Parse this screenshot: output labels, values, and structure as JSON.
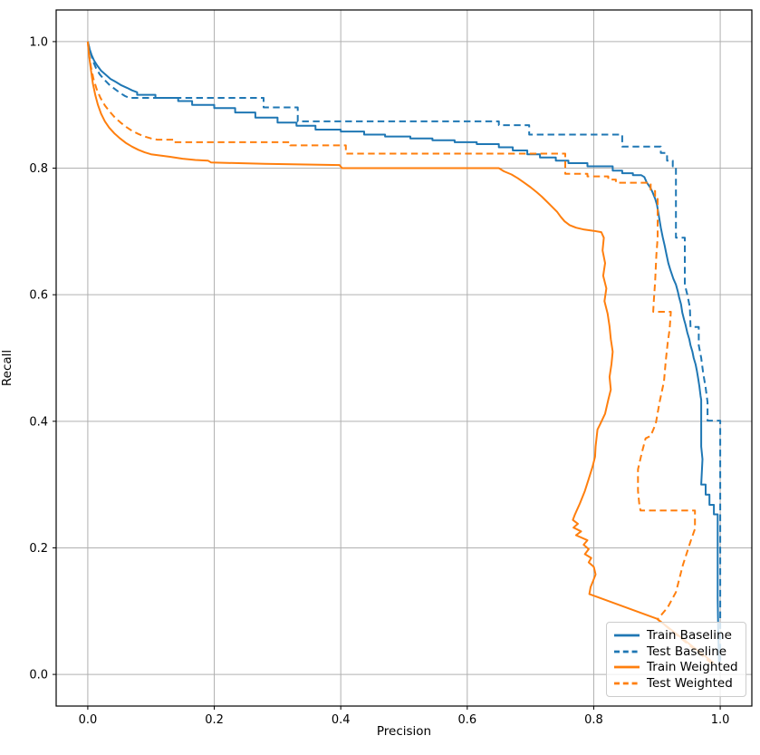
{
  "figure": {
    "background": "#ffffff",
    "axes_edge_color": "#000000",
    "grid_color": "#b0b0b0",
    "tick_color": "#000000"
  },
  "chart_data": {
    "type": "line",
    "title": "",
    "xlabel": "Precision",
    "ylabel": "Recall",
    "xlim": [
      -0.05,
      1.05
    ],
    "ylim": [
      -0.05,
      1.05
    ],
    "grid": true,
    "legend_location": "lower right",
    "xticks": [
      0.0,
      0.2,
      0.4,
      0.6,
      0.8,
      1.0
    ],
    "xtick_labels": [
      "0.0",
      "0.2",
      "0.4",
      "0.6",
      "0.8",
      "1.0"
    ],
    "yticks": [
      0.0,
      0.2,
      0.4,
      0.6,
      0.8,
      1.0
    ],
    "ytick_labels": [
      "0.0",
      "0.2",
      "0.4",
      "0.6",
      "0.8",
      "1.0"
    ],
    "series": [
      {
        "name": "Train Baseline",
        "color": "#1f77b4",
        "style": "solid",
        "points": [
          [
            0.0,
            1.0
          ],
          [
            0.003,
            0.988
          ],
          [
            0.006,
            0.979
          ],
          [
            0.01,
            0.97
          ],
          [
            0.015,
            0.962
          ],
          [
            0.021,
            0.954
          ],
          [
            0.028,
            0.948
          ],
          [
            0.036,
            0.941
          ],
          [
            0.045,
            0.936
          ],
          [
            0.053,
            0.931
          ],
          [
            0.062,
            0.927
          ],
          [
            0.07,
            0.923
          ],
          [
            0.078,
            0.92
          ],
          [
            0.078,
            0.916
          ],
          [
            0.107,
            0.916
          ],
          [
            0.107,
            0.911
          ],
          [
            0.143,
            0.911
          ],
          [
            0.143,
            0.906
          ],
          [
            0.165,
            0.906
          ],
          [
            0.165,
            0.9
          ],
          [
            0.2,
            0.9
          ],
          [
            0.2,
            0.895
          ],
          [
            0.233,
            0.895
          ],
          [
            0.233,
            0.888
          ],
          [
            0.265,
            0.888
          ],
          [
            0.265,
            0.88
          ],
          [
            0.3,
            0.88
          ],
          [
            0.3,
            0.872
          ],
          [
            0.33,
            0.872
          ],
          [
            0.33,
            0.867
          ],
          [
            0.36,
            0.867
          ],
          [
            0.36,
            0.861
          ],
          [
            0.4,
            0.861
          ],
          [
            0.4,
            0.858
          ],
          [
            0.437,
            0.858
          ],
          [
            0.437,
            0.853
          ],
          [
            0.47,
            0.853
          ],
          [
            0.47,
            0.85
          ],
          [
            0.51,
            0.85
          ],
          [
            0.51,
            0.847
          ],
          [
            0.545,
            0.847
          ],
          [
            0.545,
            0.844
          ],
          [
            0.58,
            0.844
          ],
          [
            0.58,
            0.841
          ],
          [
            0.615,
            0.841
          ],
          [
            0.615,
            0.838
          ],
          [
            0.65,
            0.838
          ],
          [
            0.65,
            0.833
          ],
          [
            0.672,
            0.833
          ],
          [
            0.672,
            0.828
          ],
          [
            0.695,
            0.828
          ],
          [
            0.695,
            0.822
          ],
          [
            0.715,
            0.822
          ],
          [
            0.715,
            0.817
          ],
          [
            0.74,
            0.817
          ],
          [
            0.74,
            0.812
          ],
          [
            0.76,
            0.812
          ],
          [
            0.76,
            0.808
          ],
          [
            0.79,
            0.808
          ],
          [
            0.79,
            0.803
          ],
          [
            0.83,
            0.803
          ],
          [
            0.83,
            0.796
          ],
          [
            0.845,
            0.796
          ],
          [
            0.845,
            0.792
          ],
          [
            0.862,
            0.792
          ],
          [
            0.862,
            0.789
          ],
          [
            0.875,
            0.789
          ],
          [
            0.88,
            0.786
          ],
          [
            0.884,
            0.777
          ],
          [
            0.889,
            0.77
          ],
          [
            0.893,
            0.762
          ],
          [
            0.897,
            0.752
          ],
          [
            0.9,
            0.742
          ],
          [
            0.902,
            0.73
          ],
          [
            0.904,
            0.718
          ],
          [
            0.906,
            0.706
          ],
          [
            0.909,
            0.691
          ],
          [
            0.912,
            0.678
          ],
          [
            0.915,
            0.664
          ],
          [
            0.918,
            0.65
          ],
          [
            0.921,
            0.64
          ],
          [
            0.923,
            0.634
          ],
          [
            0.926,
            0.625
          ],
          [
            0.93,
            0.616
          ],
          [
            0.933,
            0.605
          ],
          [
            0.935,
            0.596
          ],
          [
            0.938,
            0.585
          ],
          [
            0.94,
            0.572
          ],
          [
            0.943,
            0.56
          ],
          [
            0.945,
            0.553
          ],
          [
            0.948,
            0.54
          ],
          [
            0.951,
            0.53
          ],
          [
            0.953,
            0.52
          ],
          [
            0.956,
            0.51
          ],
          [
            0.958,
            0.5
          ],
          [
            0.961,
            0.49
          ],
          [
            0.963,
            0.48
          ],
          [
            0.965,
            0.468
          ],
          [
            0.967,
            0.455
          ],
          [
            0.969,
            0.44
          ],
          [
            0.97,
            0.434
          ],
          [
            0.97,
            0.36
          ],
          [
            0.972,
            0.34
          ],
          [
            0.97,
            0.3
          ],
          [
            0.977,
            0.3
          ],
          [
            0.977,
            0.284
          ],
          [
            0.983,
            0.284
          ],
          [
            0.983,
            0.268
          ],
          [
            0.99,
            0.268
          ],
          [
            0.99,
            0.253
          ],
          [
            0.996,
            0.253
          ],
          [
            0.996,
            0.12
          ],
          [
            0.997,
            0.06
          ],
          [
            0.998,
            0.02
          ]
        ]
      },
      {
        "name": "Test Baseline",
        "color": "#1f77b4",
        "style": "dashed",
        "points": [
          [
            0.0,
            1.0
          ],
          [
            0.004,
            0.984
          ],
          [
            0.008,
            0.97
          ],
          [
            0.013,
            0.958
          ],
          [
            0.019,
            0.948
          ],
          [
            0.026,
            0.94
          ],
          [
            0.034,
            0.932
          ],
          [
            0.043,
            0.925
          ],
          [
            0.051,
            0.919
          ],
          [
            0.059,
            0.914
          ],
          [
            0.066,
            0.911
          ],
          [
            0.278,
            0.911
          ],
          [
            0.278,
            0.896
          ],
          [
            0.332,
            0.896
          ],
          [
            0.332,
            0.874
          ],
          [
            0.65,
            0.874
          ],
          [
            0.65,
            0.868
          ],
          [
            0.698,
            0.868
          ],
          [
            0.698,
            0.853
          ],
          [
            0.845,
            0.853
          ],
          [
            0.845,
            0.834
          ],
          [
            0.906,
            0.834
          ],
          [
            0.906,
            0.824
          ],
          [
            0.916,
            0.824
          ],
          [
            0.916,
            0.812
          ],
          [
            0.925,
            0.812
          ],
          [
            0.925,
            0.803
          ],
          [
            0.93,
            0.803
          ],
          [
            0.93,
            0.69
          ],
          [
            0.944,
            0.69
          ],
          [
            0.944,
            0.616
          ],
          [
            0.948,
            0.6
          ],
          [
            0.952,
            0.58
          ],
          [
            0.953,
            0.549
          ],
          [
            0.966,
            0.549
          ],
          [
            0.966,
            0.52
          ],
          [
            0.97,
            0.5
          ],
          [
            0.973,
            0.477
          ],
          [
            0.977,
            0.453
          ],
          [
            0.98,
            0.43
          ],
          [
            0.98,
            0.401
          ],
          [
            1.0,
            0.401
          ],
          [
            1.0,
            0.02
          ]
        ]
      },
      {
        "name": "Train Weighted",
        "color": "#ff7f0e",
        "style": "solid",
        "points": [
          [
            0.0,
            1.0
          ],
          [
            0.002,
            0.978
          ],
          [
            0.005,
            0.955
          ],
          [
            0.008,
            0.934
          ],
          [
            0.012,
            0.915
          ],
          [
            0.016,
            0.9
          ],
          [
            0.021,
            0.886
          ],
          [
            0.027,
            0.874
          ],
          [
            0.034,
            0.864
          ],
          [
            0.042,
            0.855
          ],
          [
            0.051,
            0.847
          ],
          [
            0.06,
            0.84
          ],
          [
            0.07,
            0.834
          ],
          [
            0.08,
            0.829
          ],
          [
            0.09,
            0.825
          ],
          [
            0.1,
            0.822
          ],
          [
            0.115,
            0.82
          ],
          [
            0.13,
            0.818
          ],
          [
            0.15,
            0.815
          ],
          [
            0.17,
            0.813
          ],
          [
            0.19,
            0.812
          ],
          [
            0.195,
            0.809
          ],
          [
            0.28,
            0.807
          ],
          [
            0.398,
            0.805
          ],
          [
            0.402,
            0.8
          ],
          [
            0.65,
            0.8
          ],
          [
            0.658,
            0.795
          ],
          [
            0.67,
            0.79
          ],
          [
            0.68,
            0.784
          ],
          [
            0.69,
            0.777
          ],
          [
            0.7,
            0.77
          ],
          [
            0.71,
            0.762
          ],
          [
            0.718,
            0.755
          ],
          [
            0.726,
            0.747
          ],
          [
            0.734,
            0.739
          ],
          [
            0.742,
            0.731
          ],
          [
            0.748,
            0.723
          ],
          [
            0.754,
            0.716
          ],
          [
            0.762,
            0.71
          ],
          [
            0.772,
            0.706
          ],
          [
            0.785,
            0.703
          ],
          [
            0.8,
            0.701
          ],
          [
            0.812,
            0.699
          ],
          [
            0.816,
            0.69
          ],
          [
            0.814,
            0.67
          ],
          [
            0.818,
            0.65
          ],
          [
            0.815,
            0.63
          ],
          [
            0.82,
            0.61
          ],
          [
            0.817,
            0.59
          ],
          [
            0.822,
            0.57
          ],
          [
            0.825,
            0.55
          ],
          [
            0.827,
            0.53
          ],
          [
            0.83,
            0.51
          ],
          [
            0.828,
            0.49
          ],
          [
            0.825,
            0.47
          ],
          [
            0.827,
            0.45
          ],
          [
            0.823,
            0.434
          ],
          [
            0.818,
            0.412
          ],
          [
            0.81,
            0.395
          ],
          [
            0.806,
            0.387
          ],
          [
            0.803,
            0.36
          ],
          [
            0.802,
            0.344
          ],
          [
            0.798,
            0.328
          ],
          [
            0.792,
            0.309
          ],
          [
            0.786,
            0.29
          ],
          [
            0.778,
            0.27
          ],
          [
            0.77,
            0.252
          ],
          [
            0.767,
            0.244
          ],
          [
            0.775,
            0.238
          ],
          [
            0.768,
            0.232
          ],
          [
            0.78,
            0.226
          ],
          [
            0.772,
            0.22
          ],
          [
            0.79,
            0.212
          ],
          [
            0.784,
            0.205
          ],
          [
            0.792,
            0.198
          ],
          [
            0.786,
            0.19
          ],
          [
            0.796,
            0.184
          ],
          [
            0.792,
            0.177
          ],
          [
            0.8,
            0.17
          ],
          [
            0.803,
            0.158
          ],
          [
            0.799,
            0.148
          ],
          [
            0.795,
            0.138
          ],
          [
            0.793,
            0.127
          ],
          [
            0.9,
            0.088
          ],
          [
            0.99,
            0.018
          ]
        ]
      },
      {
        "name": "Test Weighted",
        "color": "#ff7f0e",
        "style": "dashed",
        "points": [
          [
            0.0,
            1.0
          ],
          [
            0.002,
            0.98
          ],
          [
            0.005,
            0.96
          ],
          [
            0.009,
            0.941
          ],
          [
            0.014,
            0.925
          ],
          [
            0.02,
            0.911
          ],
          [
            0.027,
            0.899
          ],
          [
            0.035,
            0.889
          ],
          [
            0.043,
            0.88
          ],
          [
            0.052,
            0.872
          ],
          [
            0.061,
            0.865
          ],
          [
            0.07,
            0.859
          ],
          [
            0.08,
            0.854
          ],
          [
            0.09,
            0.85
          ],
          [
            0.1,
            0.847
          ],
          [
            0.11,
            0.845
          ],
          [
            0.136,
            0.845
          ],
          [
            0.136,
            0.841
          ],
          [
            0.32,
            0.841
          ],
          [
            0.32,
            0.836
          ],
          [
            0.408,
            0.836
          ],
          [
            0.408,
            0.823
          ],
          [
            0.755,
            0.823
          ],
          [
            0.755,
            0.791
          ],
          [
            0.79,
            0.791
          ],
          [
            0.79,
            0.787
          ],
          [
            0.823,
            0.787
          ],
          [
            0.823,
            0.782
          ],
          [
            0.835,
            0.782
          ],
          [
            0.835,
            0.777
          ],
          [
            0.89,
            0.777
          ],
          [
            0.89,
            0.764
          ],
          [
            0.897,
            0.764
          ],
          [
            0.897,
            0.753
          ],
          [
            0.901,
            0.753
          ],
          [
            0.901,
            0.69
          ],
          [
            0.899,
            0.663
          ],
          [
            0.897,
            0.62
          ],
          [
            0.895,
            0.591
          ],
          [
            0.894,
            0.573
          ],
          [
            0.922,
            0.573
          ],
          [
            0.92,
            0.545
          ],
          [
            0.917,
            0.524
          ],
          [
            0.914,
            0.496
          ],
          [
            0.911,
            0.463
          ],
          [
            0.904,
            0.43
          ],
          [
            0.898,
            0.396
          ],
          [
            0.89,
            0.377
          ],
          [
            0.882,
            0.373
          ],
          [
            0.876,
            0.35
          ],
          [
            0.87,
            0.324
          ],
          [
            0.87,
            0.29
          ],
          [
            0.872,
            0.27
          ],
          [
            0.874,
            0.259
          ],
          [
            0.96,
            0.259
          ],
          [
            0.96,
            0.23
          ],
          [
            0.953,
            0.21
          ],
          [
            0.941,
            0.173
          ],
          [
            0.93,
            0.13
          ],
          [
            0.917,
            0.106
          ],
          [
            0.901,
            0.087
          ],
          [
            0.993,
            0.012
          ]
        ]
      }
    ]
  }
}
